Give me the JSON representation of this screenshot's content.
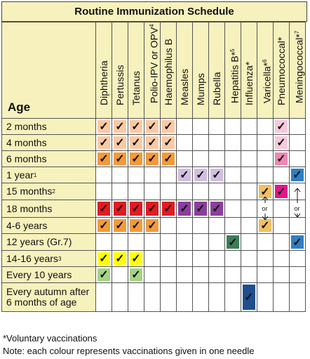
{
  "title": "Routine Immunization Schedule",
  "age_header": "Age",
  "vaccines": [
    {
      "label": "Diphtheria",
      "sup": ""
    },
    {
      "label": "Pertussis",
      "sup": ""
    },
    {
      "label": "Tetanus",
      "sup": ""
    },
    {
      "label": "Polio-IPV or OPV",
      "sup": "4"
    },
    {
      "label": "Haemophilus B",
      "sup": ""
    },
    {
      "label": "Measles",
      "sup": ""
    },
    {
      "label": "Mumps",
      "sup": ""
    },
    {
      "label": "Rubella",
      "sup": ""
    },
    {
      "label": "Hepatitis B*",
      "sup": "5"
    },
    {
      "label": "Influenza*",
      "sup": ""
    },
    {
      "label": "Varicella*",
      "sup": "6"
    },
    {
      "label": "Pneumococcal*",
      "sup": ""
    },
    {
      "label": "Meningococcal*",
      "sup": "7"
    }
  ],
  "rows": [
    {
      "age": "2 months",
      "sup": ""
    },
    {
      "age": "4 months",
      "sup": ""
    },
    {
      "age": "6 months",
      "sup": ""
    },
    {
      "age": "1 year",
      "sup": "1"
    },
    {
      "age": "15 months",
      "sup": "2"
    },
    {
      "age": "18 months",
      "sup": ""
    },
    {
      "age": "4-6 years",
      "sup": ""
    },
    {
      "age": "12 years (Gr.7)",
      "sup": ""
    },
    {
      "age": "14-16 years",
      "sup": "3"
    },
    {
      "age": "Every 10 years",
      "sup": ""
    },
    {
      "age": "Every autumn after 6 months of age",
      "sup": ""
    }
  ],
  "check_symbol": "✓",
  "or_label": "or",
  "colors": {
    "title_bg": "#f7f1bd",
    "header_bg": "#f7f1bd",
    "age_bg": "#f7f1bd",
    "light_orange": "#fbc9a4",
    "orange": "#f39a3a",
    "light_purple": "#d2bfe0",
    "red": "#e11b22",
    "purple": "#8a3e9d",
    "green": "#3b7d59",
    "yellow": "#ffff00",
    "light_green": "#a6d385",
    "navy": "#1f4e8f",
    "light_pink": "#f6c9dc",
    "pink": "#ef86b4",
    "magenta": "#e6158c",
    "blue": "#2f7fc3",
    "gold": "#f2c061"
  },
  "checks": [
    {
      "row": 0,
      "col": 0,
      "color": "light_orange"
    },
    {
      "row": 0,
      "col": 1,
      "color": "light_orange"
    },
    {
      "row": 0,
      "col": 2,
      "color": "light_orange"
    },
    {
      "row": 0,
      "col": 3,
      "color": "light_orange"
    },
    {
      "row": 0,
      "col": 4,
      "color": "light_orange"
    },
    {
      "row": 0,
      "col": 11,
      "color": "light_pink"
    },
    {
      "row": 1,
      "col": 0,
      "color": "light_orange"
    },
    {
      "row": 1,
      "col": 1,
      "color": "light_orange"
    },
    {
      "row": 1,
      "col": 2,
      "color": "light_orange"
    },
    {
      "row": 1,
      "col": 3,
      "color": "light_orange"
    },
    {
      "row": 1,
      "col": 4,
      "color": "light_orange"
    },
    {
      "row": 1,
      "col": 11,
      "color": "light_pink"
    },
    {
      "row": 2,
      "col": 0,
      "color": "orange"
    },
    {
      "row": 2,
      "col": 1,
      "color": "orange"
    },
    {
      "row": 2,
      "col": 2,
      "color": "orange"
    },
    {
      "row": 2,
      "col": 3,
      "color": "orange"
    },
    {
      "row": 2,
      "col": 4,
      "color": "orange"
    },
    {
      "row": 2,
      "col": 11,
      "color": "pink"
    },
    {
      "row": 3,
      "col": 5,
      "color": "light_purple"
    },
    {
      "row": 3,
      "col": 6,
      "color": "light_purple"
    },
    {
      "row": 3,
      "col": 7,
      "color": "light_purple"
    },
    {
      "row": 3,
      "col": 12,
      "color": "blue"
    },
    {
      "row": 4,
      "col": 10,
      "color": "gold"
    },
    {
      "row": 4,
      "col": 11,
      "color": "magenta"
    },
    {
      "row": 5,
      "col": 0,
      "color": "red"
    },
    {
      "row": 5,
      "col": 1,
      "color": "red"
    },
    {
      "row": 5,
      "col": 2,
      "color": "red"
    },
    {
      "row": 5,
      "col": 3,
      "color": "red"
    },
    {
      "row": 5,
      "col": 4,
      "color": "red"
    },
    {
      "row": 5,
      "col": 5,
      "color": "purple"
    },
    {
      "row": 5,
      "col": 6,
      "color": "purple"
    },
    {
      "row": 5,
      "col": 7,
      "color": "purple"
    },
    {
      "row": 6,
      "col": 0,
      "color": "orange"
    },
    {
      "row": 6,
      "col": 1,
      "color": "orange"
    },
    {
      "row": 6,
      "col": 2,
      "color": "orange"
    },
    {
      "row": 6,
      "col": 3,
      "color": "orange"
    },
    {
      "row": 6,
      "col": 10,
      "color": "gold"
    },
    {
      "row": 7,
      "col": 8,
      "color": "green"
    },
    {
      "row": 7,
      "col": 12,
      "color": "blue"
    },
    {
      "row": 8,
      "col": 0,
      "color": "yellow"
    },
    {
      "row": 8,
      "col": 1,
      "color": "yellow"
    },
    {
      "row": 8,
      "col": 2,
      "color": "yellow"
    },
    {
      "row": 9,
      "col": 0,
      "color": "light_green"
    },
    {
      "row": 9,
      "col": 2,
      "color": "light_green"
    },
    {
      "row": 10,
      "col": 9,
      "color": "navy"
    }
  ],
  "or_markers": [
    {
      "row": 5,
      "col": 10
    },
    {
      "row": 5,
      "col": 12
    }
  ],
  "footnotes": [
    "*Voluntary vaccinations",
    "Note: each colour represents vaccinations given in one needle"
  ]
}
